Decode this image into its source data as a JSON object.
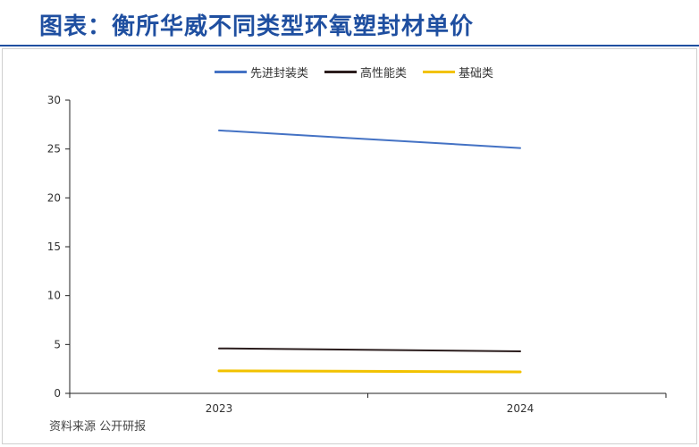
{
  "header": {
    "title": "图表：衡所华威不同类型环氧塑封材单价"
  },
  "source": "资料来源   公开研报",
  "chart_data": {
    "type": "line",
    "x": [
      "2023",
      "2024"
    ],
    "ylim": [
      0,
      30
    ],
    "yticks": [
      0,
      5,
      10,
      15,
      20,
      25,
      30
    ],
    "grid": false,
    "legend_position": "top",
    "series": [
      {
        "name": "先进封装类",
        "color": "#4472c4",
        "values": [
          26.9,
          25.1
        ]
      },
      {
        "name": "高性能类",
        "color": "#2b1d1d",
        "values": [
          4.6,
          4.3
        ]
      },
      {
        "name": "基础类",
        "color": "#f2c200",
        "values": [
          2.3,
          2.2
        ]
      }
    ]
  }
}
